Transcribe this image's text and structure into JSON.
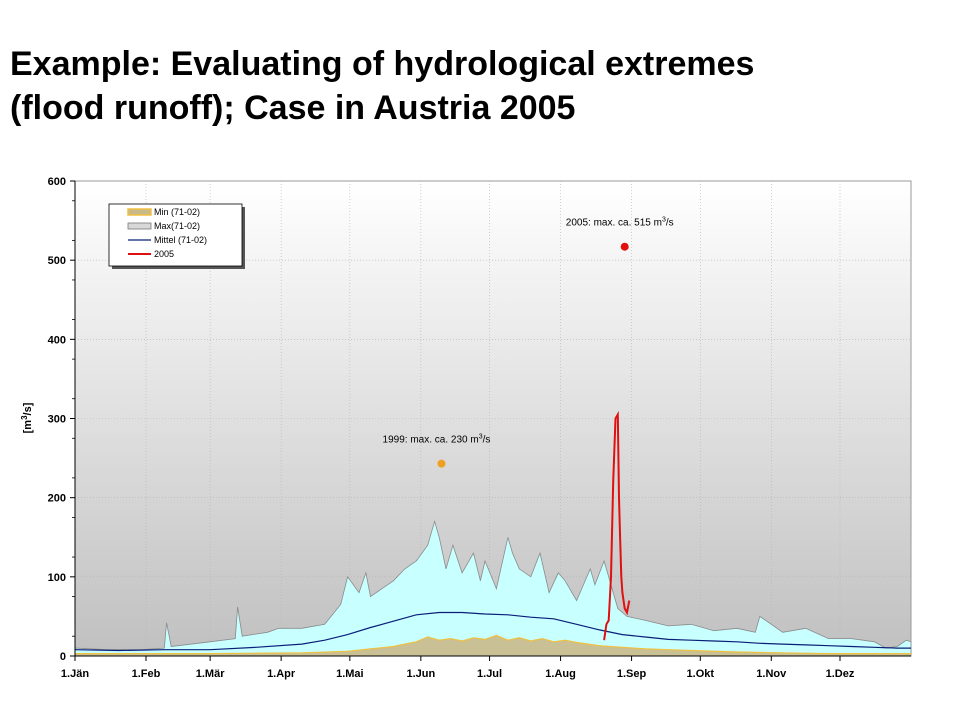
{
  "slide": {
    "title_line1": "Example: Evaluating of hydrological extremes",
    "title_line2": "(flood runoff); Case in Austria 2005"
  },
  "chart_data": {
    "type": "area",
    "ylabel": {
      "prefix": "[m",
      "sup": "3",
      "suffix": "/s]"
    },
    "ylim": [
      0,
      600
    ],
    "yticks": [
      0,
      100,
      200,
      300,
      400,
      500,
      600
    ],
    "xlim": [
      1,
      366
    ],
    "x_unit": "day of year",
    "month_ticks": [
      {
        "label": "1.Jän",
        "day": 1
      },
      {
        "label": "1.Feb",
        "day": 32
      },
      {
        "label": "1.Mär",
        "day": 60
      },
      {
        "label": "1.Apr",
        "day": 91
      },
      {
        "label": "1.Mai",
        "day": 121
      },
      {
        "label": "1.Jun",
        "day": 152
      },
      {
        "label": "1.Jul",
        "day": 182
      },
      {
        "label": "1.Aug",
        "day": 213
      },
      {
        "label": "1.Sep",
        "day": 244
      },
      {
        "label": "1.Okt",
        "day": 274
      },
      {
        "label": "1.Nov",
        "day": 305
      },
      {
        "label": "1.Dez",
        "day": 335
      }
    ],
    "grid": true,
    "legend_position": "top-left",
    "series": [
      {
        "name": "Max(71-02)",
        "kind": "area",
        "color": "#c8ffff",
        "x": [
          1,
          15,
          30,
          40,
          41,
          43,
          60,
          71,
          72,
          74,
          85,
          90,
          100,
          110,
          117,
          120,
          125,
          128,
          130,
          135,
          140,
          145,
          150,
          155,
          158,
          160,
          163,
          166,
          170,
          175,
          178,
          180,
          185,
          190,
          192,
          195,
          200,
          204,
          208,
          212,
          215,
          220,
          226,
          228,
          232,
          238,
          242,
          250,
          260,
          270,
          280,
          290,
          298,
          300,
          305,
          310,
          320,
          330,
          340,
          345,
          350,
          355,
          360,
          364,
          366
        ],
        "y": [
          10,
          8,
          8,
          10,
          42,
          12,
          18,
          22,
          62,
          25,
          30,
          35,
          35,
          40,
          65,
          100,
          80,
          105,
          75,
          85,
          95,
          110,
          120,
          140,
          170,
          150,
          110,
          140,
          105,
          130,
          95,
          120,
          85,
          150,
          130,
          110,
          100,
          130,
          80,
          105,
          95,
          70,
          110,
          90,
          120,
          60,
          50,
          45,
          38,
          40,
          32,
          35,
          30,
          50,
          40,
          30,
          35,
          22,
          22,
          20,
          18,
          10,
          12,
          20,
          18
        ]
      },
      {
        "name": "Mittel (71-02)",
        "kind": "line",
        "color": "#0a1e78",
        "x": [
          1,
          20,
          40,
          60,
          80,
          100,
          110,
          120,
          130,
          140,
          150,
          160,
          170,
          180,
          190,
          200,
          210,
          220,
          230,
          240,
          250,
          260,
          270,
          280,
          290,
          300,
          310,
          320,
          330,
          340,
          350,
          360,
          366
        ],
        "y": [
          8,
          7,
          8,
          8,
          11,
          15,
          20,
          27,
          36,
          44,
          52,
          55,
          55,
          53,
          52,
          49,
          47,
          40,
          33,
          27,
          24,
          21,
          20,
          19,
          18,
          16,
          15,
          14,
          13,
          12,
          11,
          10,
          10
        ]
      },
      {
        "name": "Min (71-02)",
        "kind": "line",
        "color": "#f0c040",
        "x": [
          1,
          60,
          100,
          120,
          130,
          140,
          145,
          150,
          155,
          160,
          165,
          170,
          175,
          180,
          185,
          190,
          195,
          200,
          205,
          210,
          215,
          220,
          225,
          230,
          240,
          250,
          260,
          270,
          290,
          310,
          330,
          366
        ],
        "y": [
          3,
          3,
          4,
          6,
          9,
          12,
          15,
          18,
          24,
          20,
          22,
          19,
          23,
          21,
          26,
          20,
          23,
          19,
          22,
          18,
          20,
          17,
          15,
          13,
          11,
          9,
          8,
          7,
          5,
          4,
          3,
          3
        ]
      },
      {
        "name": "2005",
        "kind": "line",
        "color": "#e01010",
        "x": [
          232,
          233,
          234,
          235,
          236,
          237,
          238,
          238.5,
          239,
          239.5,
          240,
          241,
          242,
          243
        ],
        "y": [
          20,
          40,
          45,
          100,
          220,
          300,
          305,
          200,
          150,
          100,
          80,
          60,
          55,
          70
        ]
      }
    ],
    "points": [
      {
        "name": "1999",
        "x": 161,
        "y": 243,
        "color": "#f0a020",
        "label": {
          "text": "1999: max. ca. 230 m",
          "sup": "3",
          "tail": "/s"
        }
      },
      {
        "name": "2005",
        "x": 241,
        "y": 517,
        "color": "#e01010",
        "label": {
          "text": "2005: max. ca. 515 m",
          "sup": "3",
          "tail": "/s"
        }
      }
    ]
  }
}
